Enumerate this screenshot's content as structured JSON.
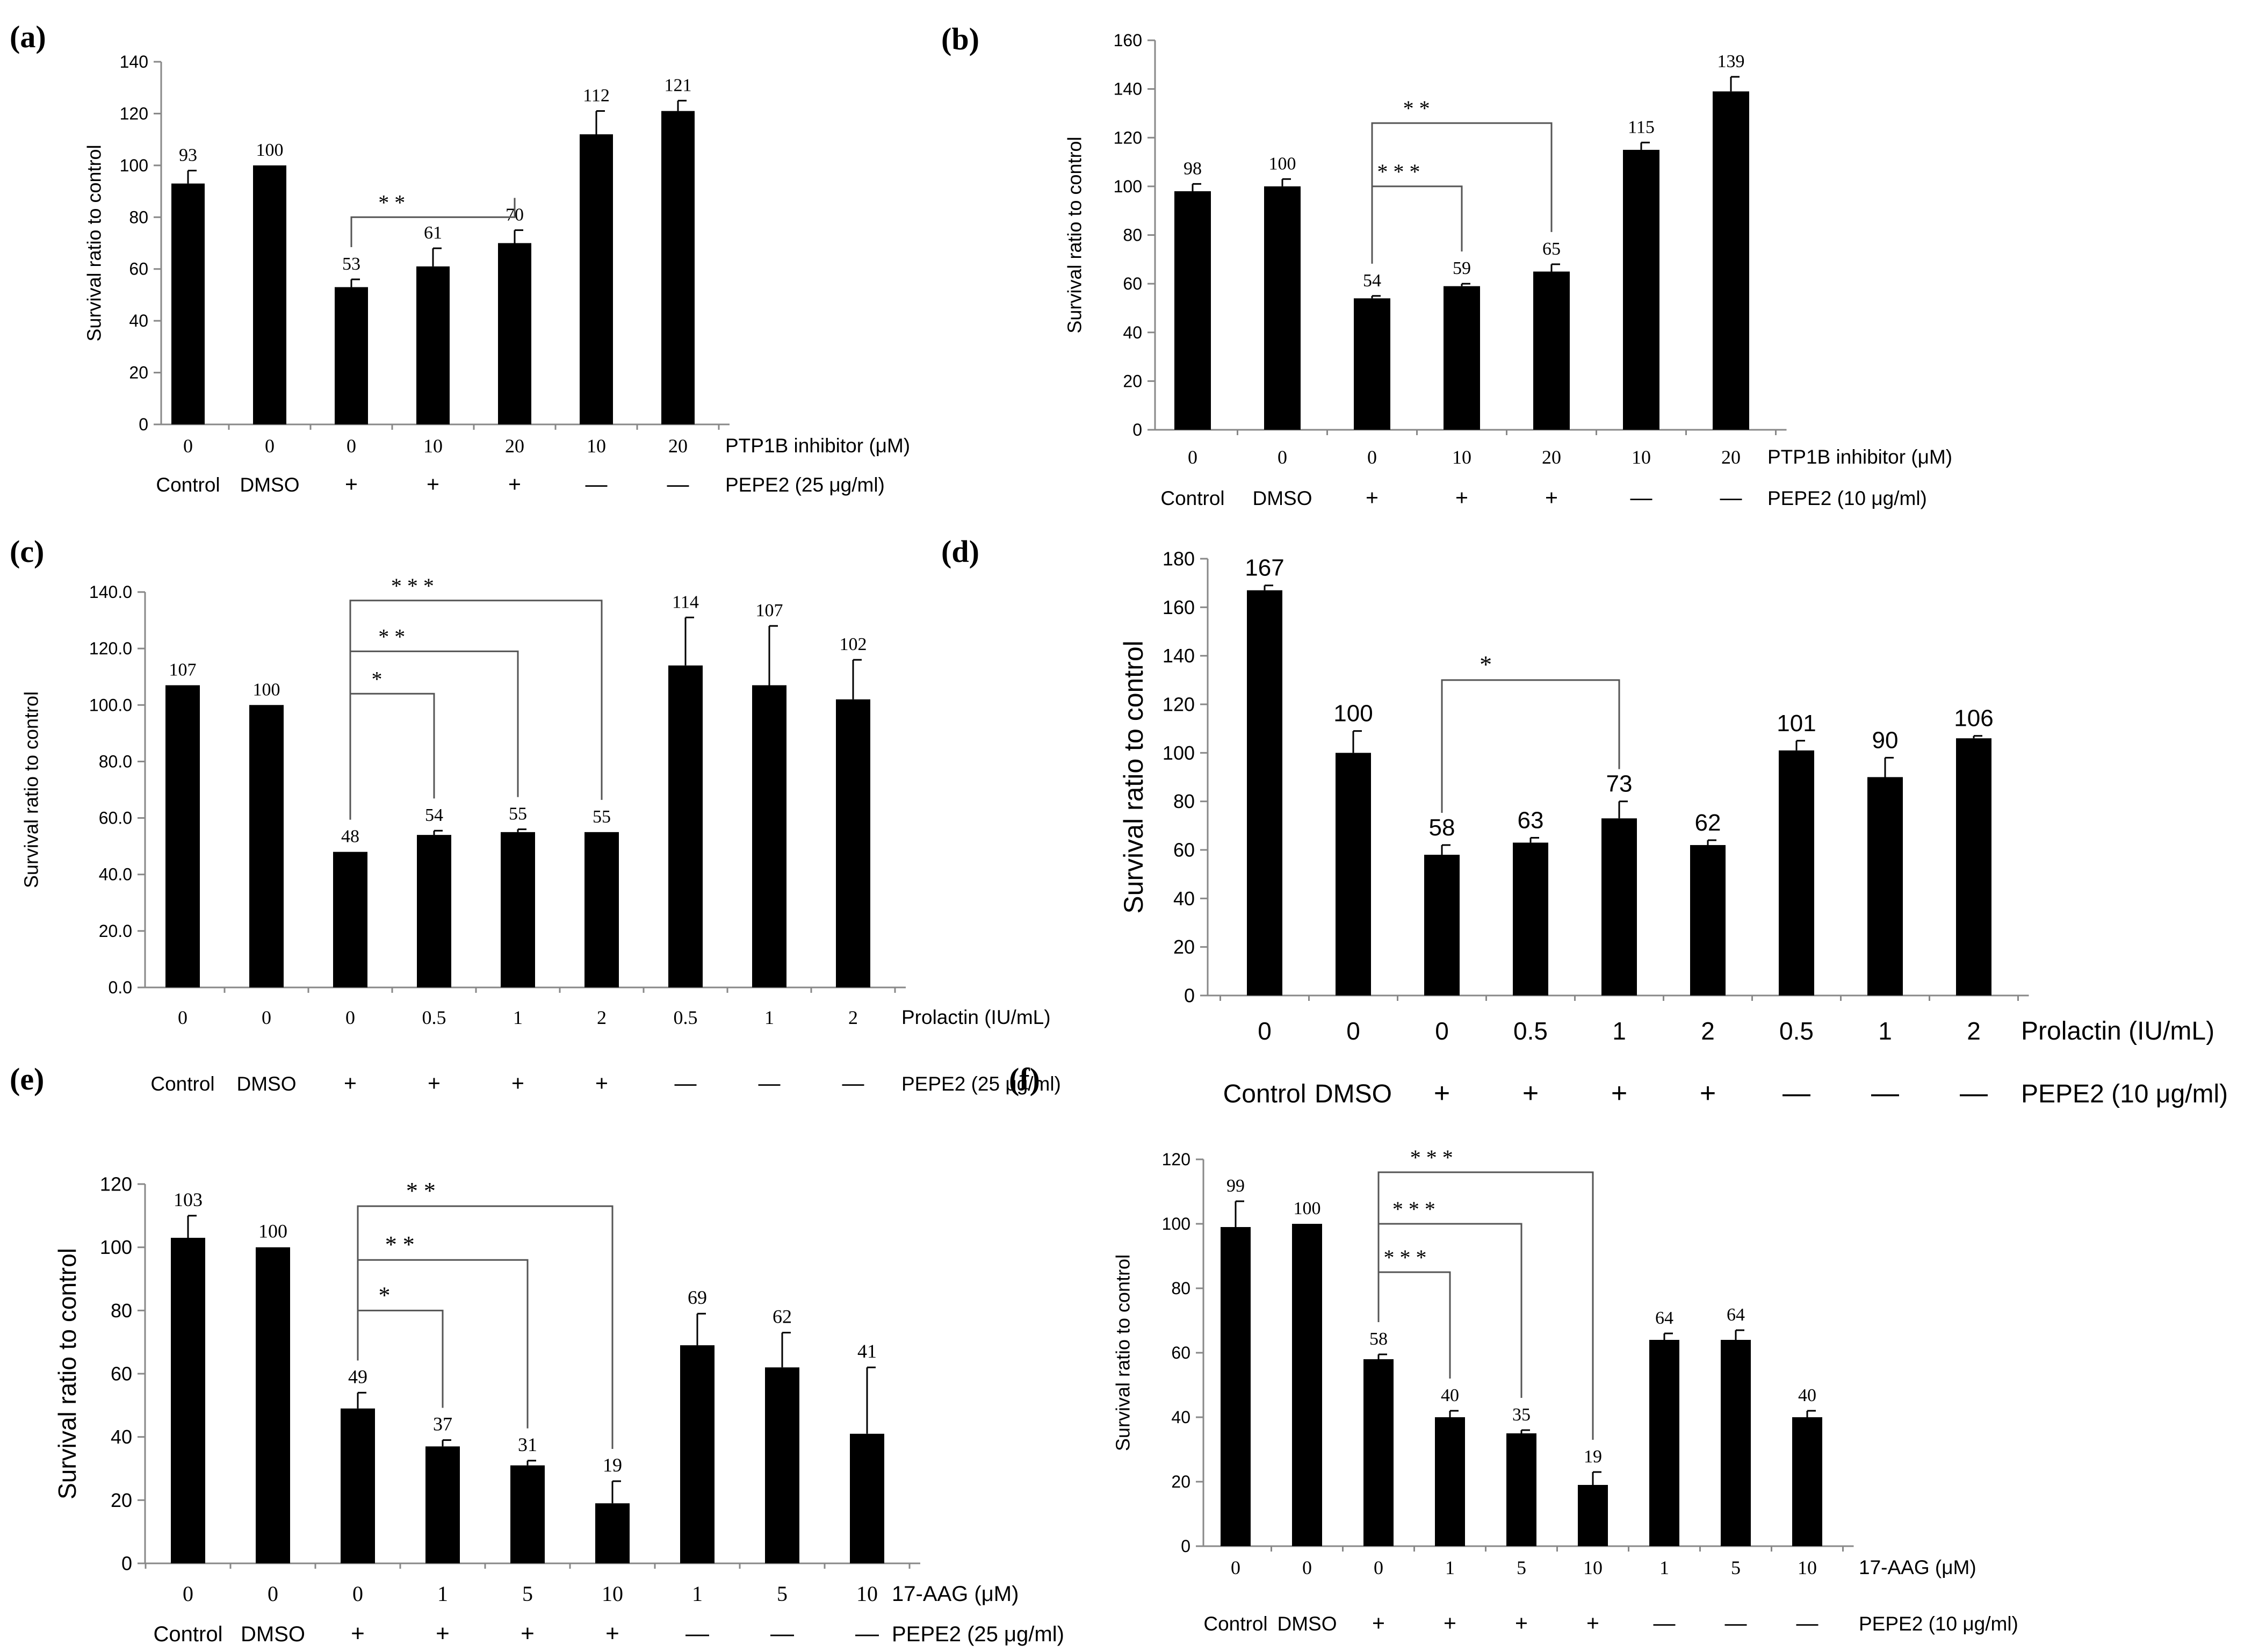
{
  "figure": {
    "panels": [
      {
        "id": "a",
        "panel_label": "(a)",
        "style": "serif-small",
        "chart_data": {
          "type": "bar",
          "ylabel": "Survival ratio to control",
          "ylim": [
            0,
            140
          ],
          "yticks": [
            "0",
            "20",
            "40",
            "60",
            "80",
            "100",
            "120",
            "140"
          ],
          "values": [
            93,
            100,
            53,
            61,
            70,
            112,
            121
          ],
          "errors": [
            5,
            0,
            3,
            7,
            5,
            9,
            4
          ],
          "value_labels": [
            "93",
            "100",
            "53",
            "61",
            "70",
            "112",
            "121"
          ],
          "x_tick_labels": [
            "0",
            "0",
            "0",
            "10",
            "20",
            "10",
            "20"
          ],
          "row1_title": "PTP1B inhibitor (μM)",
          "row2": [
            "Control",
            "DMSO",
            "+",
            "+",
            "+",
            "—",
            "—"
          ],
          "row2_title": "PEPE2 (25 μg/ml)",
          "significance": [
            {
              "from": 2,
              "to": 4,
              "label": "* *",
              "level": 80
            }
          ]
        }
      },
      {
        "id": "b",
        "panel_label": "(b)",
        "style": "serif-small",
        "chart_data": {
          "type": "bar",
          "ylabel": "Survival ratio to control",
          "ylim": [
            0,
            160
          ],
          "yticks": [
            "0",
            "20",
            "40",
            "60",
            "80",
            "100",
            "120",
            "140",
            "160"
          ],
          "values": [
            98,
            100,
            54,
            59,
            65,
            115,
            139
          ],
          "errors": [
            3,
            3,
            1,
            1,
            3,
            3,
            6
          ],
          "value_labels": [
            "98",
            "100",
            "54",
            "59",
            "65",
            "115",
            "139"
          ],
          "x_tick_labels": [
            "0",
            "0",
            "0",
            "10",
            "20",
            "10",
            "20"
          ],
          "row1_title": "PTP1B inhibitor (μM)",
          "row2": [
            "Control",
            "DMSO",
            "+",
            "+",
            "+",
            "—",
            "—"
          ],
          "row2_title": "PEPE2 (10 μg/ml)",
          "significance": [
            {
              "from": 2,
              "to": 3,
              "label": "* * *",
              "level": 100
            },
            {
              "from": 2,
              "to": 4,
              "label": "* *",
              "level": 126
            }
          ]
        }
      },
      {
        "id": "c",
        "panel_label": "(c)",
        "style": "serif-small",
        "chart_data": {
          "type": "bar",
          "ylabel": "Survival ratio to control",
          "ylim": [
            0,
            140
          ],
          "yticks": [
            "0.0",
            "20.0",
            "40.0",
            "60.0",
            "80.0",
            "100.0",
            "120.0",
            "140.0"
          ],
          "values": [
            107,
            100,
            48,
            54,
            55,
            55,
            114,
            107,
            102
          ],
          "errors": [
            0,
            0,
            0,
            1.5,
            1,
            0,
            17,
            21,
            14
          ],
          "value_labels": [
            "107",
            "100",
            "48",
            "54",
            "55",
            "55",
            "114",
            "107",
            "102"
          ],
          "x_tick_labels": [
            "0",
            "0",
            "0",
            "0.5",
            "1",
            "2",
            "0.5",
            "1",
            "2"
          ],
          "row1_title": "Prolactin (IU/mL)",
          "row2": [
            "Control",
            "DMSO",
            "+",
            "+",
            "+",
            "+",
            "—",
            "—",
            "—"
          ],
          "row2_title": "PEPE2 (25 μg/ml)",
          "significance": [
            {
              "from": 2,
              "to": 3,
              "label": "*",
              "level": 104
            },
            {
              "from": 2,
              "to": 4,
              "label": "* *",
              "level": 119
            },
            {
              "from": 2,
              "to": 5,
              "label": "* * *",
              "level": 137
            }
          ]
        }
      },
      {
        "id": "d",
        "panel_label": "(d)",
        "style": "sans-large",
        "chart_data": {
          "type": "bar",
          "ylabel": "Survival  ratio to control",
          "ylim": [
            0,
            180
          ],
          "yticks": [
            "0",
            "20",
            "40",
            "60",
            "80",
            "100",
            "120",
            "140",
            "160",
            "180"
          ],
          "values": [
            167,
            100,
            58,
            63,
            73,
            62,
            101,
            90,
            106
          ],
          "errors": [
            2,
            9,
            4,
            2,
            7,
            2,
            4,
            8,
            1
          ],
          "value_labels": [
            "167",
            "100",
            "58",
            "63",
            "73",
            "62",
            "101",
            "90",
            "106"
          ],
          "x_tick_labels": [
            "0",
            "0",
            "0",
            "0.5",
            "1",
            "2",
            "0.5",
            "1",
            "2"
          ],
          "row1_title": "Prolactin (IU/mL)",
          "row2": [
            "Control",
            "DMSO",
            "+",
            "+",
            "+",
            "+",
            "—",
            "—",
            "—"
          ],
          "row2_title": "PEPE2 (10 μg/ml)",
          "significance": [
            {
              "from": 2,
              "to": 4,
              "label": "*",
              "level": 130
            }
          ]
        }
      },
      {
        "id": "e",
        "panel_label": "(e)",
        "style": "serif-large",
        "chart_data": {
          "type": "bar",
          "ylabel": "Survival  ratio to control",
          "ylim": [
            0,
            120
          ],
          "yticks": [
            "0",
            "20",
            "40",
            "60",
            "80",
            "100",
            "120"
          ],
          "values": [
            103,
            100,
            49,
            37,
            31,
            19,
            69,
            62,
            41
          ],
          "errors": [
            7,
            0,
            5,
            2,
            1.5,
            7,
            10,
            11,
            21
          ],
          "value_labels": [
            "103",
            "100",
            "49",
            "37",
            "31",
            "19",
            "69",
            "62",
            "41"
          ],
          "x_tick_labels": [
            "0",
            "0",
            "0",
            "1",
            "5",
            "10",
            "1",
            "5",
            "10"
          ],
          "row1_title": "17-AAG (μM)",
          "row2": [
            "Control",
            "DMSO",
            "+",
            "+",
            "+",
            "+",
            "—",
            "—",
            "—"
          ],
          "row2_title": "PEPE2 (25 μg/ml)",
          "significance": [
            {
              "from": 2,
              "to": 3,
              "label": "*",
              "level": 80
            },
            {
              "from": 2,
              "to": 4,
              "label": "* *",
              "level": 96
            },
            {
              "from": 2,
              "to": 5,
              "label": "* *",
              "level": 113
            }
          ]
        }
      },
      {
        "id": "f",
        "panel_label": "(f)",
        "style": "serif-small",
        "chart_data": {
          "type": "bar",
          "ylabel": "Survival ratio to control",
          "ylim": [
            0,
            120
          ],
          "yticks": [
            "0",
            "20",
            "40",
            "60",
            "80",
            "100",
            "120"
          ],
          "values": [
            99,
            100,
            58,
            40,
            35,
            19,
            64,
            64,
            40
          ],
          "errors": [
            8,
            0,
            1.5,
            2,
            1,
            4,
            2,
            3,
            2
          ],
          "value_labels": [
            "99",
            "100",
            "58",
            "40",
            "35",
            "19",
            "64",
            "64",
            "40"
          ],
          "x_tick_labels": [
            "0",
            "0",
            "0",
            "1",
            "5",
            "10",
            "1",
            "5",
            "10"
          ],
          "row1_title": "17-AAG (μM)",
          "row2": [
            "Control",
            "DMSO",
            "+",
            "+",
            "+",
            "+",
            "—",
            "—",
            "—"
          ],
          "row2_title": "PEPE2 (10 μg/ml)",
          "significance": [
            {
              "from": 2,
              "to": 3,
              "label": "* * *",
              "level": 85
            },
            {
              "from": 2,
              "to": 4,
              "label": "* * *",
              "level": 100
            },
            {
              "from": 2,
              "to": 5,
              "label": "* * *",
              "level": 116
            }
          ]
        }
      }
    ]
  }
}
